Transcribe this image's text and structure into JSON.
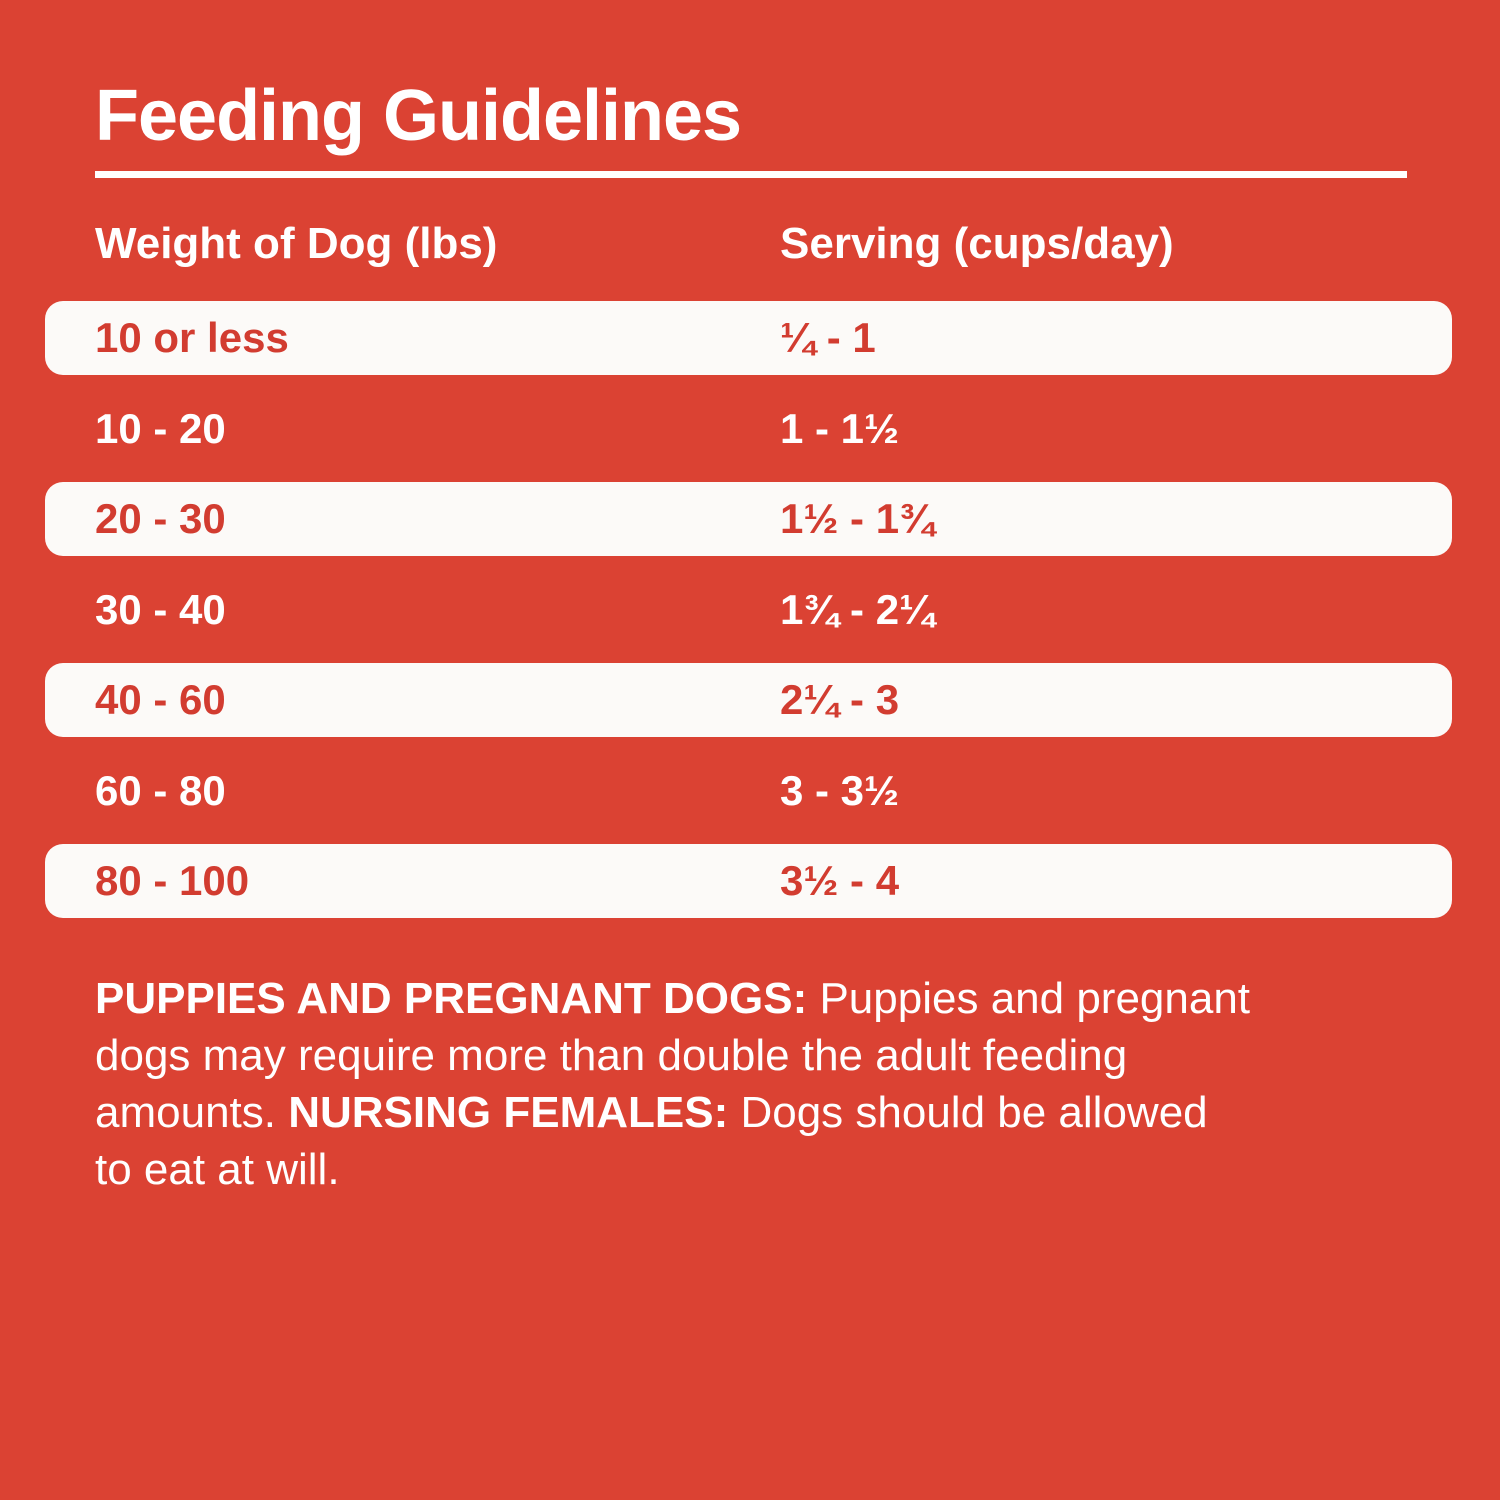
{
  "colors": {
    "background_red": "#DB4233",
    "row_highlight_bg": "#FCFAF8",
    "row_text_red": "#D23C30",
    "text_white": "#FFFFFF"
  },
  "title": "Feeding Guidelines",
  "table": {
    "columns": [
      {
        "label": "Weight of Dog (lbs)"
      },
      {
        "label": "Serving (cups/day)"
      }
    ],
    "rows": [
      {
        "weight": "10 or less",
        "serving": "¼ - 1",
        "highlight": true
      },
      {
        "weight": "10 - 20",
        "serving": "1 - 1½",
        "highlight": false
      },
      {
        "weight": "20 - 30",
        "serving": "1½ - 1¾",
        "highlight": true
      },
      {
        "weight": "30 - 40",
        "serving": "1¾ - 2¼",
        "highlight": false
      },
      {
        "weight": "40 - 60",
        "serving": "2¼ - 3",
        "highlight": true
      },
      {
        "weight": "60 - 80",
        "serving": "3 - 3½",
        "highlight": false
      },
      {
        "weight": "80 - 100",
        "serving": "3½ - 4",
        "highlight": true
      }
    ]
  },
  "notes": {
    "lines": [
      {
        "parts": [
          {
            "text": "PUPPIES AND PREGNANT DOGS:",
            "bold": true
          },
          {
            "text": " Puppies and pregnant",
            "bold": false
          }
        ]
      },
      {
        "parts": [
          {
            "text": "dogs may require more than double the adult feeding",
            "bold": false
          }
        ]
      },
      {
        "parts": [
          {
            "text": "amounts. ",
            "bold": false
          },
          {
            "text": "NURSING FEMALES:",
            "bold": true
          },
          {
            "text": " Dogs should be allowed",
            "bold": false
          }
        ]
      },
      {
        "parts": [
          {
            "text": "to eat at will.",
            "bold": false
          }
        ]
      }
    ]
  }
}
